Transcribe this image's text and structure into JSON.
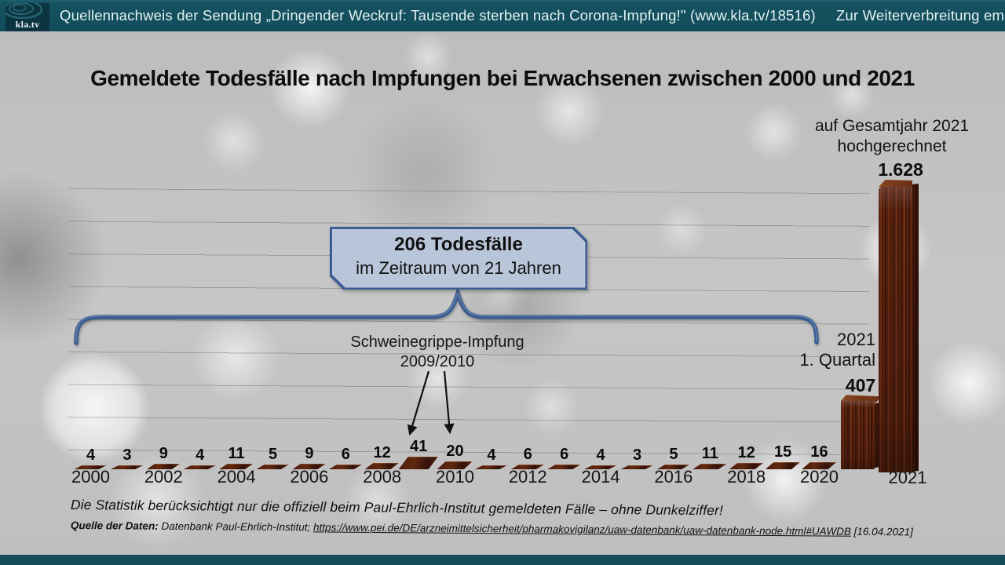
{
  "top_bar": {
    "logo_text": "kla.tv",
    "source_text": "Quellennachweis der Sendung „Dringender Weckruf: Tausende sterben nach Corona-Impfung!\" (www.kla.tv/18516)",
    "recommendation": "Zur Weiterverbreitung empfohlen!",
    "bar_color": "#124c5a"
  },
  "chart_data": {
    "type": "bar",
    "title": "Gemeldete Todesfälle nach Impfungen bei Erwachsenen zwischen 2000 und 2021",
    "categories": [
      2000,
      2001,
      2002,
      2003,
      2004,
      2005,
      2006,
      2007,
      2008,
      2009,
      2010,
      2011,
      2012,
      2013,
      2014,
      2015,
      2016,
      2017,
      2018,
      2019,
      2020
    ],
    "values": [
      4,
      3,
      9,
      4,
      11,
      5,
      9,
      6,
      12,
      41,
      20,
      4,
      6,
      6,
      4,
      3,
      5,
      11,
      12,
      15,
      16
    ],
    "x_tick_labels": [
      "2000",
      "2002",
      "2004",
      "2006",
      "2008",
      "2010",
      "2012",
      "2014",
      "2016",
      "2018",
      "2020",
      "2021"
    ],
    "bars_2021": {
      "q1_label": "407",
      "q1_value": 407,
      "full_year_label": "1.628",
      "full_year_value": 1628
    },
    "total_label": {
      "line1": "206 Todesfälle",
      "line2": "im Zeitraum von 21 Jahren",
      "total": 206,
      "span_years": 21
    },
    "annotations": {
      "swine_flu": {
        "line1": "Schweinegrippe-Impfung",
        "line2": "2009/2010",
        "points_to": [
          2009,
          2010
        ]
      },
      "extrapolation": {
        "line1": "auf Gesamtjahr 2021",
        "line2": "hochgerechnet"
      },
      "q1": {
        "line1": "2021",
        "line2": "1. Quartal"
      },
      "year_2021_tick": "2021"
    },
    "grid": true,
    "legend": false,
    "bar_color": "#5a2310",
    "accent_color": "#3b5c90"
  },
  "footer": {
    "note": "Die Statistik berücksichtigt nur die offiziell beim Paul-Ehrlich-Institut gemeldeten Fälle – ohne Dunkelziffer!",
    "source_prefix": "Quelle der Daten:",
    "source_text": "Datenbank Paul-Ehrlich-Institut;",
    "source_url": "https://www.pei.de/DE/arzneimittelsicherheit/pharmakovigilanz/uaw-datenbank/uaw-datenbank-node.html#UAWDB",
    "source_date": "[16.04.2021]"
  }
}
